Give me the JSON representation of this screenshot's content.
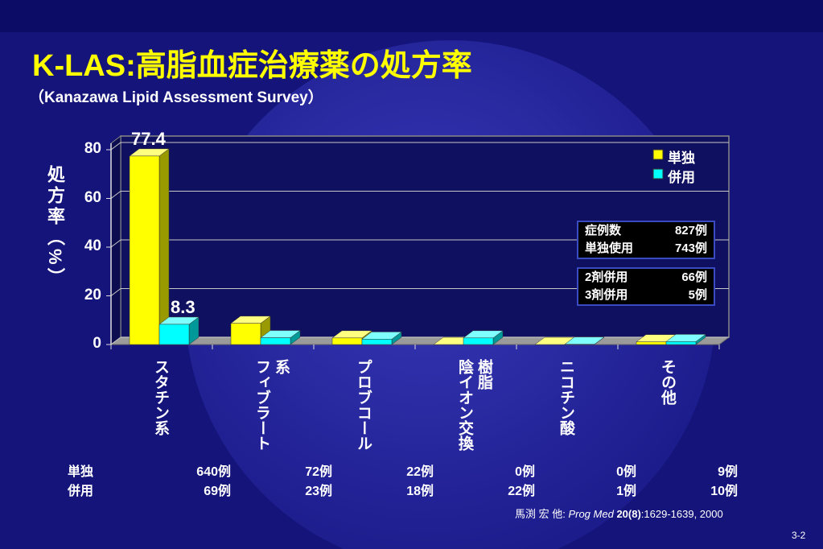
{
  "title": "K-LAS:高脂血症治療薬の処方率",
  "subtitle": "（Kanazawa Lipid Assessment Survey）",
  "chart_data": {
    "type": "bar3d",
    "y_label": "処方率（%）",
    "categories": [
      "スタチン系",
      "フィブラート系",
      "プロブコール",
      "陰イオン交換樹脂",
      "ニコチン酸",
      "その他"
    ],
    "series": [
      {
        "name": "単独",
        "color": "#ffff00",
        "values": [
          77.4,
          8.7,
          2.7,
          0,
          0,
          1.1
        ],
        "value_labels": [
          "77.4",
          null,
          null,
          null,
          null,
          null
        ]
      },
      {
        "name": "併用",
        "color": "#00ffff",
        "values": [
          8.3,
          2.8,
          2.2,
          2.7,
          0.1,
          1.2
        ],
        "value_labels": [
          "8.3",
          null,
          null,
          null,
          null,
          null
        ]
      }
    ],
    "ylim": [
      0,
      80
    ],
    "yticks": [
      0,
      20,
      40,
      60,
      80
    ],
    "grid": true,
    "legend": "upper right"
  },
  "counts": {
    "rows": [
      {
        "label": "単独",
        "cells": [
          "640例",
          "72例",
          "22例",
          "0例",
          "0例",
          "9例"
        ]
      },
      {
        "label": "併用",
        "cells": [
          "69例",
          "23例",
          "18例",
          "22例",
          "1例",
          "10例"
        ]
      }
    ]
  },
  "info_box": [
    [
      [
        "症例数",
        "827例"
      ],
      [
        "単独使用",
        "743例"
      ]
    ],
    [
      [
        "2剤併用",
        "66例"
      ],
      [
        "3剤併用",
        "5例"
      ]
    ]
  ],
  "citation": {
    "authors": "馬渕 宏 他: ",
    "journal": "Prog Med",
    "volume": " 20(8)",
    "pages": ":1629-1639, 2000"
  },
  "page": "3-2"
}
